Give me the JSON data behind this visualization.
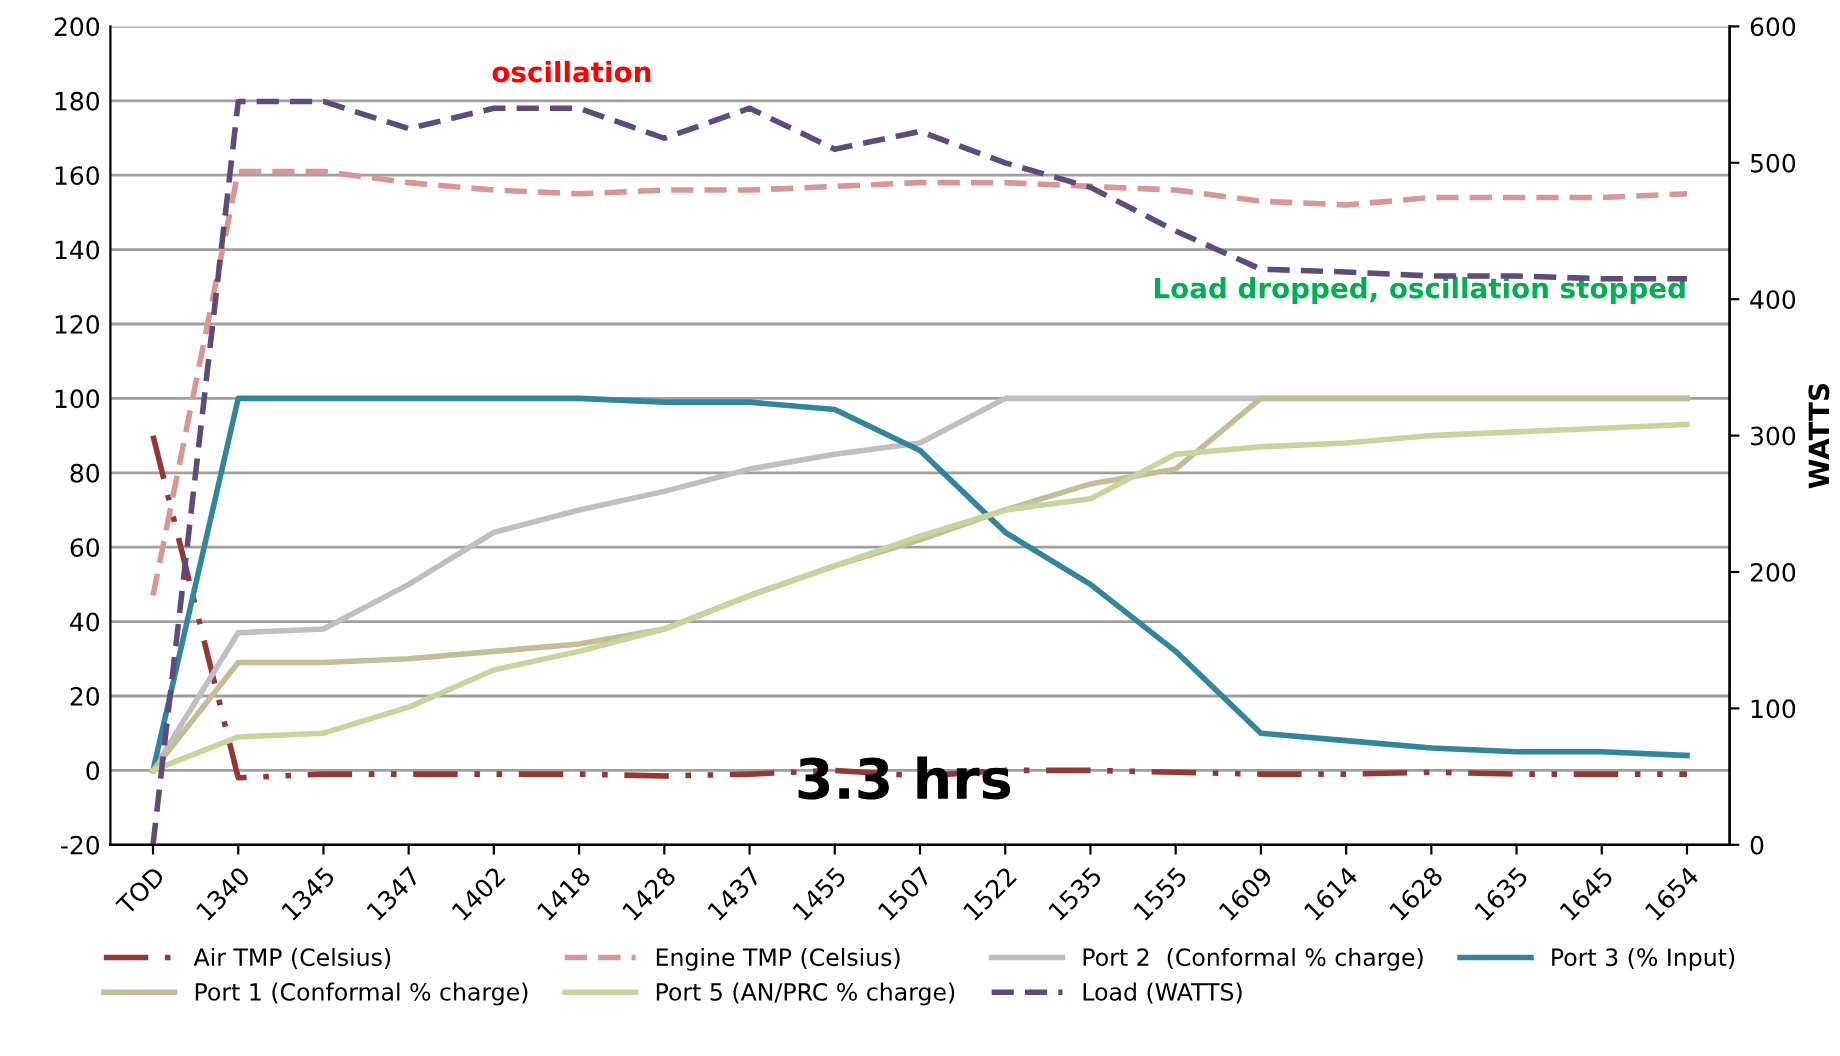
{
  "chart_data": {
    "type": "line",
    "y2label": "WATTS",
    "categories": [
      "TOD",
      "1340",
      "1345",
      "1347",
      "1402",
      "1418",
      "1428",
      "1437",
      "1455",
      "1507",
      "1522",
      "1535",
      "1555",
      "1609",
      "1614",
      "1628",
      "1635",
      "1645",
      "1654"
    ],
    "ylim": [
      -20,
      200
    ],
    "yticks": [
      -20,
      0,
      20,
      40,
      60,
      80,
      100,
      120,
      140,
      160,
      180,
      200
    ],
    "y2lim": [
      0,
      600
    ],
    "y2ticks": [
      0,
      100,
      200,
      300,
      400,
      500,
      600
    ],
    "grid": "y",
    "legend": "bottom",
    "marker": "none",
    "annotations": [
      "oscillation",
      {
        "text": "Load dropped, oscillation stopped",
        "x": "1654",
        "y": 129
      },
      "3.3 hrs"
    ],
    "series": [
      {
        "name": "Air TMP (Celsius)",
        "color": "#953735",
        "line_style": "dashdot",
        "values": [
          90,
          -2,
          -1,
          -1,
          -1,
          -1,
          -1.5,
          -1,
          0,
          -1.5,
          0,
          0,
          -0.5,
          -1,
          -1,
          -0.5,
          -1,
          -1,
          -1
        ]
      },
      {
        "name": "Engine TMP (Celsius)",
        "color": "#d99694",
        "line_style": "dashed",
        "values": [
          47,
          161,
          161,
          158,
          156,
          155,
          156,
          156,
          157,
          158,
          158,
          157,
          156,
          153,
          152,
          154,
          154,
          154,
          155
        ]
      },
      {
        "name": "Port 2  (Conformal % charge)",
        "color": "#bfbfbf",
        "line_style": "solid",
        "values": [
          0,
          37,
          38,
          50,
          64,
          70,
          75,
          81,
          85,
          88,
          100,
          100,
          100,
          100,
          100,
          100,
          100,
          100,
          100
        ]
      },
      {
        "name": "Port 3 (% Input)",
        "color": "#31859c",
        "line_style": "solid",
        "values": [
          0,
          100,
          100,
          100,
          100,
          100,
          99,
          99,
          97,
          86,
          64,
          50,
          32,
          10,
          8,
          6,
          5,
          5,
          4
        ]
      },
      {
        "name": "Port 1 (Conformal % charge)",
        "color": "#c4bd97",
        "line_style": "solid",
        "values": [
          0,
          29,
          29,
          30,
          32,
          34,
          38,
          47,
          55,
          62,
          70,
          77,
          81,
          100,
          100,
          100,
          100,
          100,
          100
        ]
      },
      {
        "name": "Port 5 (AN/PRC % charge)",
        "color": "#c3d69b",
        "line_style": "solid",
        "values": [
          0,
          9,
          10,
          17,
          27,
          32,
          38,
          47,
          55,
          63,
          70,
          73,
          85,
          87,
          88,
          90,
          91,
          92,
          93
        ]
      },
      {
        "name": "Load (WATTS)",
        "color": "#604a7b",
        "line_style": "dashed",
        "axis": "y2",
        "values": [
          0,
          545,
          545,
          525,
          540,
          540,
          518,
          540,
          510,
          523,
          500,
          482,
          450,
          422,
          420,
          417,
          417,
          415,
          415
        ]
      }
    ]
  }
}
